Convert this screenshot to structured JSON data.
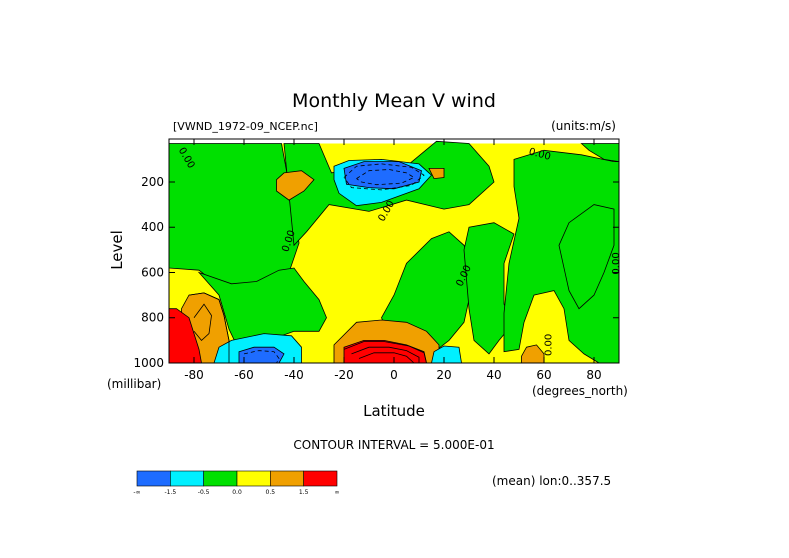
{
  "chart_data": {
    "type": "heatmap",
    "title": "Monthly Mean V wind",
    "file_label": "[VWND_1972-09_NCEP.nc]",
    "units_label": "(units:m/s)",
    "xlabel": "Latitude",
    "ylabel": "Level",
    "x_unit_label": "(degrees_north)",
    "y_unit_label": "(millibar)",
    "xlim": [
      -90,
      90
    ],
    "ylim": [
      1000,
      10
    ],
    "y_reversed": true,
    "x_ticks": [
      {
        "value": -80,
        "label": "-80"
      },
      {
        "value": -60,
        "label": "-60"
      },
      {
        "value": -40,
        "label": "-40"
      },
      {
        "value": -20,
        "label": "-20"
      },
      {
        "value": 0,
        "label": "0"
      },
      {
        "value": 20,
        "label": "20"
      },
      {
        "value": 40,
        "label": "40"
      },
      {
        "value": 60,
        "label": "60"
      },
      {
        "value": 80,
        "label": "80"
      }
    ],
    "y_ticks": [
      {
        "value": 200,
        "label": "200"
      },
      {
        "value": 400,
        "label": "400"
      },
      {
        "value": 600,
        "label": "600"
      },
      {
        "value": 800,
        "label": "800"
      },
      {
        "value": 1000,
        "label": "1000"
      }
    ],
    "contour_interval_label": "CONTOUR INTERVAL = 5.000E-01",
    "footnote": "(mean) lon:0..357.5",
    "colorbar": {
      "colors": [
        "#1e6cff",
        "#00f0ff",
        "#00e000",
        "#ffff00",
        "#f0a000",
        "#ff0000"
      ],
      "labels": [
        "-∞",
        "-1.5",
        "-0.5",
        "0.0",
        "0.5",
        "1.5",
        "∞"
      ]
    },
    "contour_labels": [
      {
        "text": "0.00",
        "x": -84,
        "y": 100,
        "rot": 60
      },
      {
        "text": "0.00",
        "x": -41,
        "y": 465,
        "rot": -72
      },
      {
        "text": "0.00",
        "x": -2,
        "y": 335,
        "rot": -60
      },
      {
        "text": "0.00",
        "x": 29,
        "y": 620,
        "rot": -65
      },
      {
        "text": "0.00",
        "x": 58,
        "y": 90,
        "rot": 15
      },
      {
        "text": "0.00",
        "x": 63,
        "y": 920,
        "rot": -90
      },
      {
        "text": "0.00",
        "x": 90,
        "y": 560,
        "rot": -90
      }
    ],
    "fields": [
      {
        "level": 0.0,
        "color": "#ffff00",
        "points": [
          [
            -90,
            30
          ],
          [
            90,
            30
          ],
          [
            90,
            1000
          ],
          [
            -90,
            1000
          ]
        ]
      },
      {
        "level": 0.0,
        "color": "#00e000",
        "points": [
          [
            -90,
            30
          ],
          [
            -45,
            30
          ],
          [
            -43,
            150
          ],
          [
            -40,
            310
          ],
          [
            -38,
            470
          ],
          [
            -42,
            600
          ],
          [
            -50,
            640
          ],
          [
            -62,
            680
          ],
          [
            -70,
            660
          ],
          [
            -78,
            590
          ],
          [
            -90,
            580
          ]
        ]
      },
      {
        "level": 0.0,
        "color": "#00e000",
        "points": [
          [
            -78,
            600
          ],
          [
            -70,
            700
          ],
          [
            -66,
            850
          ],
          [
            -63,
            920
          ],
          [
            -52,
            920
          ],
          [
            -45,
            880
          ],
          [
            -40,
            860
          ],
          [
            -30,
            860
          ],
          [
            -27,
            800
          ],
          [
            -30,
            720
          ],
          [
            -36,
            640
          ],
          [
            -40,
            580
          ],
          [
            -46,
            590
          ],
          [
            -55,
            640
          ],
          [
            -65,
            650
          ]
        ]
      },
      {
        "level": 0.0,
        "color": "#00e000",
        "points": [
          [
            -44,
            30
          ],
          [
            -30,
            30
          ],
          [
            -25,
            160
          ],
          [
            -10,
            120
          ],
          [
            5,
            130
          ],
          [
            17,
            20
          ],
          [
            30,
            30
          ],
          [
            38,
            130
          ],
          [
            40,
            200
          ],
          [
            30,
            300
          ],
          [
            20,
            320
          ],
          [
            5,
            280
          ],
          [
            -10,
            330
          ],
          [
            -26,
            300
          ],
          [
            -35,
            420
          ],
          [
            -40,
            480
          ]
        ]
      },
      {
        "level": 0.0,
        "color": "#00e000",
        "points": [
          [
            -5,
            800
          ],
          [
            0,
            700
          ],
          [
            5,
            560
          ],
          [
            15,
            450
          ],
          [
            22,
            420
          ],
          [
            28,
            480
          ],
          [
            32,
            570
          ],
          [
            30,
            720
          ],
          [
            28,
            820
          ],
          [
            22,
            900
          ],
          [
            15,
            960
          ],
          [
            5,
            950
          ],
          [
            -2,
            880
          ]
        ]
      },
      {
        "level": 0.0,
        "color": "#00e000",
        "points": [
          [
            28,
            500
          ],
          [
            30,
            400
          ],
          [
            40,
            380
          ],
          [
            48,
            430
          ],
          [
            44,
            560
          ],
          [
            44,
            740
          ],
          [
            48,
            820
          ],
          [
            42,
            900
          ],
          [
            38,
            960
          ],
          [
            32,
            900
          ],
          [
            30,
            760
          ]
        ]
      },
      {
        "level": 0.0,
        "color": "#00e000",
        "points": [
          [
            48,
            100
          ],
          [
            60,
            60
          ],
          [
            75,
            80
          ],
          [
            88,
            110
          ],
          [
            90,
            110
          ],
          [
            90,
            1000
          ],
          [
            82,
            1000
          ],
          [
            76,
            960
          ],
          [
            70,
            900
          ],
          [
            68,
            760
          ],
          [
            64,
            680
          ],
          [
            56,
            700
          ],
          [
            52,
            820
          ],
          [
            50,
            940
          ],
          [
            44,
            950
          ],
          [
            44,
            780
          ],
          [
            46,
            560
          ],
          [
            50,
            360
          ],
          [
            48,
            220
          ]
        ]
      },
      {
        "level": 0.0,
        "color": "#00e000",
        "points": [
          [
            75,
            30
          ],
          [
            90,
            30
          ],
          [
            90,
            110
          ],
          [
            84,
            100
          ],
          [
            78,
            60
          ]
        ]
      },
      {
        "level": 0.0,
        "color": "#00e000",
        "points": [
          [
            66,
            480
          ],
          [
            70,
            380
          ],
          [
            80,
            300
          ],
          [
            88,
            320
          ],
          [
            88,
            480
          ],
          [
            84,
            600
          ],
          [
            80,
            700
          ],
          [
            74,
            760
          ],
          [
            70,
            680
          ]
        ]
      },
      {
        "level": 0.5,
        "color": "#f0a000",
        "points": [
          [
            -44,
            160
          ],
          [
            -37,
            150
          ],
          [
            -32,
            190
          ],
          [
            -36,
            240
          ],
          [
            -42,
            280
          ],
          [
            -47,
            240
          ],
          [
            -47,
            190
          ]
        ]
      },
      {
        "level": 0.5,
        "color": "#f0a000",
        "points": [
          [
            -24,
            920
          ],
          [
            -15,
            820
          ],
          [
            -5,
            810
          ],
          [
            5,
            820
          ],
          [
            13,
            860
          ],
          [
            18,
            920
          ],
          [
            18,
            1000
          ],
          [
            -24,
            1000
          ]
        ]
      },
      {
        "level": 0.5,
        "color": "#f0a000",
        "points": [
          [
            -82,
            700
          ],
          [
            -76,
            690
          ],
          [
            -70,
            720
          ],
          [
            -68,
            790
          ],
          [
            -66,
            900
          ],
          [
            -66,
            1000
          ],
          [
            -82,
            1000
          ],
          [
            -85,
            880
          ],
          [
            -85,
            760
          ]
        ]
      },
      {
        "level": 0.5,
        "color": "#f0a000",
        "points": [
          [
            53,
            930
          ],
          [
            57,
            920
          ],
          [
            60,
            960
          ],
          [
            60,
            1000
          ],
          [
            51,
            1000
          ],
          [
            51,
            970
          ]
        ]
      },
      {
        "level": 0.5,
        "color": "#f0a000",
        "points": [
          [
            14,
            140
          ],
          [
            20,
            140
          ],
          [
            20,
            180
          ],
          [
            16,
            185
          ]
        ]
      },
      {
        "level": 1.5,
        "color": "#ff0000",
        "points": [
          [
            -20,
            930
          ],
          [
            -12,
            900
          ],
          [
            -4,
            900
          ],
          [
            5,
            920
          ],
          [
            12,
            950
          ],
          [
            13,
            1000
          ],
          [
            -20,
            1000
          ]
        ]
      },
      {
        "level": 1.5,
        "color": "#ff0000",
        "points": [
          [
            -87,
            760
          ],
          [
            -82,
            800
          ],
          [
            -80,
            870
          ],
          [
            -78,
            940
          ],
          [
            -77,
            1000
          ],
          [
            -90,
            1000
          ],
          [
            -90,
            760
          ]
        ]
      },
      {
        "level": -0.5,
        "color": "#00f0ff",
        "points": [
          [
            -24,
            130
          ],
          [
            -18,
            105
          ],
          [
            -5,
            100
          ],
          [
            10,
            120
          ],
          [
            15,
            170
          ],
          [
            10,
            230
          ],
          [
            -5,
            290
          ],
          [
            -15,
            305
          ],
          [
            -22,
            250
          ],
          [
            -24,
            190
          ]
        ]
      },
      {
        "level": -0.5,
        "color": "#00f0ff",
        "points": [
          [
            -70,
            930
          ],
          [
            -65,
            900
          ],
          [
            -52,
            870
          ],
          [
            -41,
            880
          ],
          [
            -37,
            930
          ],
          [
            -37,
            1000
          ],
          [
            -72,
            1000
          ]
        ]
      },
      {
        "level": -0.5,
        "color": "#00f0ff",
        "points": [
          [
            16,
            950
          ],
          [
            20,
            925
          ],
          [
            26,
            930
          ],
          [
            27,
            1000
          ],
          [
            15,
            1000
          ]
        ]
      },
      {
        "level": -1.5,
        "color": "#1e6cff",
        "points": [
          [
            -20,
            140
          ],
          [
            -12,
            110
          ],
          [
            2,
            110
          ],
          [
            11,
            150
          ],
          [
            10,
            200
          ],
          [
            0,
            230
          ],
          [
            -10,
            225
          ],
          [
            -19,
            210
          ]
        ]
      },
      {
        "level": -1.5,
        "color": "#1e6cff",
        "points": [
          [
            -62,
            950
          ],
          [
            -56,
            930
          ],
          [
            -48,
            930
          ],
          [
            -44,
            960
          ],
          [
            -46,
            1000
          ],
          [
            -62,
            1000
          ]
        ]
      }
    ],
    "contour_lines": [
      {
        "style": "solid",
        "points": [
          [
            -82,
            700
          ],
          [
            -76,
            690
          ],
          [
            -70,
            720
          ],
          [
            -68,
            790
          ],
          [
            -66,
            900
          ],
          [
            -66,
            1000
          ]
        ]
      },
      {
        "style": "solid",
        "points": [
          [
            -80,
            800
          ],
          [
            -76,
            740
          ],
          [
            -73,
            790
          ],
          [
            -74,
            870
          ],
          [
            -77,
            900
          ],
          [
            -80,
            860
          ]
        ]
      },
      {
        "style": "solid",
        "points": [
          [
            -20,
            940
          ],
          [
            -12,
            905
          ],
          [
            -4,
            905
          ],
          [
            6,
            925
          ],
          [
            12,
            955
          ],
          [
            13,
            1000
          ]
        ]
      },
      {
        "style": "solid",
        "points": [
          [
            -17,
            960
          ],
          [
            -10,
            930
          ],
          [
            -2,
            930
          ],
          [
            5,
            945
          ],
          [
            10,
            975
          ],
          [
            10,
            1000
          ]
        ]
      },
      {
        "style": "solid",
        "points": [
          [
            -14,
            980
          ],
          [
            -8,
            955
          ],
          [
            0,
            955
          ],
          [
            5,
            970
          ],
          [
            8,
            1000
          ]
        ]
      },
      {
        "style": "dashed",
        "points": [
          [
            -20,
            180
          ],
          [
            -15,
            130
          ],
          [
            -5,
            120
          ],
          [
            7,
            135
          ],
          [
            12,
            170
          ],
          [
            7,
            215
          ],
          [
            -5,
            235
          ],
          [
            -17,
            225
          ],
          [
            -20,
            180
          ]
        ]
      },
      {
        "style": "dashed",
        "points": [
          [
            -15,
            185
          ],
          [
            -10,
            150
          ],
          [
            -2,
            145
          ],
          [
            5,
            160
          ],
          [
            8,
            180
          ],
          [
            3,
            205
          ],
          [
            -7,
            212
          ],
          [
            -13,
            200
          ],
          [
            -15,
            185
          ]
        ]
      },
      {
        "style": "dashed",
        "points": [
          [
            -60,
            960
          ],
          [
            -54,
            945
          ],
          [
            -48,
            950
          ],
          [
            -46,
            980
          ],
          [
            -47,
            1000
          ]
        ]
      }
    ]
  }
}
